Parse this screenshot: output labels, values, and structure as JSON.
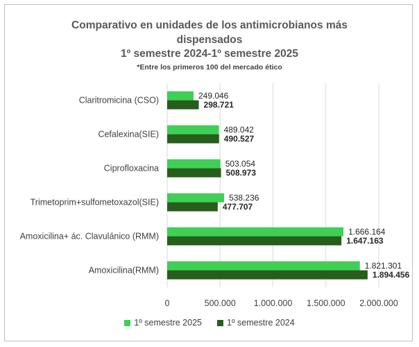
{
  "chart_data": {
    "type": "bar",
    "orientation": "horizontal",
    "title": [
      "Comparativo en unidades de los antimicrobianos más",
      "dispensados",
      "1º semestre 2024-1º semestre 2025"
    ],
    "subtitle": "*Entre los primeros 100 del mercado ético",
    "categories": [
      "Claritromicina (CSO)",
      "Cefalexina(SIE)",
      "Ciprofloxacina",
      "Trimetoprim+sulfometoxazol(SIE)",
      "Amoxicilina+ ác. Clavulánico (RMM)",
      "Amoxicilina(RMM)"
    ],
    "series": [
      {
        "name": "1º semestre 2025",
        "color": "#3fcf55",
        "values": [
          249046,
          489042,
          503054,
          538236,
          1666164,
          1821301
        ],
        "labels": [
          "249.046",
          "489.042",
          "503.054",
          "538.236",
          "1.666.164",
          "1.821.301"
        ]
      },
      {
        "name": "1º semestre 2024",
        "color": "#275e1c",
        "values": [
          298721,
          490527,
          508973,
          477707,
          1647163,
          1894456
        ],
        "labels": [
          "298.721",
          "490.527",
          "508.973",
          "477.707",
          "1.647.163",
          "1.894.456"
        ]
      }
    ],
    "xlim": [
      0,
      2000000
    ],
    "xticks": [
      0,
      500000,
      1000000,
      1500000,
      2000000
    ],
    "xtick_labels": [
      "0",
      "500.000",
      "1.000.000",
      "1.500.000",
      "2.000.000"
    ],
    "grid": true,
    "legend_position": "bottom"
  }
}
